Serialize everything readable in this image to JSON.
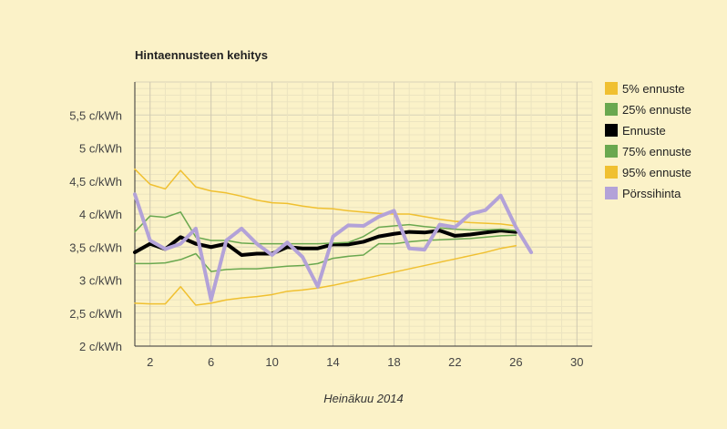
{
  "chart_data": {
    "type": "line",
    "title": "Hintaennusteen kehitys",
    "xlabel": "Heinäkuu 2014",
    "ylabel": "",
    "xlim": [
      1,
      31
    ],
    "ylim": [
      2,
      6
    ],
    "x_ticks": [
      2,
      6,
      10,
      14,
      18,
      22,
      26,
      30
    ],
    "y_ticks": [
      {
        "v": 2,
        "label": "2 c/kWh"
      },
      {
        "v": 2.5,
        "label": "2,5 c/kWh"
      },
      {
        "v": 3,
        "label": "3 c/kWh"
      },
      {
        "v": 3.5,
        "label": "3,5 c/kWh"
      },
      {
        "v": 4,
        "label": "4 c/kWh"
      },
      {
        "v": 4.5,
        "label": "4,5 c/kWh"
      },
      {
        "v": 5,
        "label": "5 c/kWh"
      },
      {
        "v": 5.5,
        "label": "5,5 c/kWh"
      }
    ],
    "grid": true,
    "legend_position": "right",
    "series": [
      {
        "name": "5% ennuste",
        "color": "#f0c030",
        "width": 1.5,
        "x": [
          1,
          2,
          3,
          4,
          5,
          6,
          7,
          8,
          9,
          10,
          11,
          12,
          13,
          14,
          15,
          16,
          17,
          18,
          19,
          20,
          21,
          22,
          23,
          24,
          25,
          26
        ],
        "values": [
          2.65,
          2.64,
          2.64,
          2.9,
          2.62,
          2.65,
          2.7,
          2.73,
          2.75,
          2.78,
          2.83,
          2.85,
          2.88,
          2.92,
          2.97,
          3.02,
          3.07,
          3.12,
          3.17,
          3.22,
          3.27,
          3.32,
          3.37,
          3.42,
          3.48,
          3.52
        ]
      },
      {
        "name": "25% ennuste",
        "color": "#6aa84f",
        "width": 1.5,
        "x": [
          1,
          2,
          3,
          4,
          5,
          6,
          7,
          8,
          9,
          10,
          11,
          12,
          13,
          14,
          15,
          16,
          17,
          18,
          19,
          20,
          21,
          22,
          23,
          24,
          25,
          26
        ],
        "values": [
          3.25,
          3.25,
          3.26,
          3.31,
          3.4,
          3.13,
          3.16,
          3.17,
          3.17,
          3.19,
          3.21,
          3.22,
          3.25,
          3.33,
          3.36,
          3.38,
          3.55,
          3.55,
          3.58,
          3.6,
          3.61,
          3.62,
          3.63,
          3.65,
          3.67,
          3.68
        ]
      },
      {
        "name": "Ennuste",
        "color": "#000000",
        "width": 4,
        "x": [
          1,
          2,
          3,
          4,
          5,
          6,
          7,
          8,
          9,
          10,
          11,
          12,
          13,
          14,
          15,
          16,
          17,
          18,
          19,
          20,
          21,
          22,
          23,
          24,
          25,
          26
        ],
        "values": [
          3.42,
          3.55,
          3.47,
          3.65,
          3.55,
          3.5,
          3.55,
          3.38,
          3.4,
          3.4,
          3.5,
          3.48,
          3.48,
          3.54,
          3.54,
          3.58,
          3.66,
          3.7,
          3.73,
          3.72,
          3.75,
          3.67,
          3.69,
          3.72,
          3.75,
          3.73
        ]
      },
      {
        "name": "75% ennuste",
        "color": "#6aa84f",
        "width": 1.5,
        "x": [
          1,
          2,
          3,
          4,
          5,
          6,
          7,
          8,
          9,
          10,
          11,
          12,
          13,
          14,
          15,
          16,
          17,
          18,
          19,
          20,
          21,
          22,
          23,
          24,
          25,
          26
        ],
        "values": [
          3.73,
          3.97,
          3.95,
          4.03,
          3.65,
          3.6,
          3.6,
          3.56,
          3.55,
          3.55,
          3.55,
          3.55,
          3.55,
          3.56,
          3.57,
          3.66,
          3.8,
          3.82,
          3.84,
          3.81,
          3.79,
          3.77,
          3.76,
          3.76,
          3.77,
          3.75
        ]
      },
      {
        "name": "95% ennuste",
        "color": "#f0c030",
        "width": 1.5,
        "x": [
          1,
          2,
          3,
          4,
          5,
          6,
          7,
          8,
          9,
          10,
          11,
          12,
          13,
          14,
          15,
          16,
          17,
          18,
          19,
          20,
          21,
          22,
          23,
          24,
          25,
          26
        ],
        "values": [
          4.68,
          4.45,
          4.38,
          4.66,
          4.41,
          4.35,
          4.32,
          4.27,
          4.21,
          4.17,
          4.16,
          4.12,
          4.09,
          4.08,
          4.05,
          4.03,
          4.01,
          4.0,
          4.0,
          3.96,
          3.92,
          3.89,
          3.87,
          3.86,
          3.85,
          3.82
        ]
      },
      {
        "name": "Pörssihinta",
        "color": "#b3a2d8",
        "width": 4,
        "x": [
          1,
          2,
          3,
          4,
          5,
          6,
          7,
          8,
          9,
          10,
          11,
          12,
          13,
          14,
          15,
          16,
          17,
          18,
          19,
          20,
          21,
          22,
          23,
          24,
          25,
          26,
          27
        ],
        "values": [
          4.3,
          3.6,
          3.47,
          3.55,
          3.78,
          2.7,
          3.6,
          3.78,
          3.55,
          3.38,
          3.57,
          3.35,
          2.9,
          3.66,
          3.83,
          3.82,
          3.96,
          4.05,
          3.48,
          3.46,
          3.84,
          3.8,
          4.0,
          4.06,
          4.28,
          3.8,
          3.42
        ]
      }
    ]
  }
}
